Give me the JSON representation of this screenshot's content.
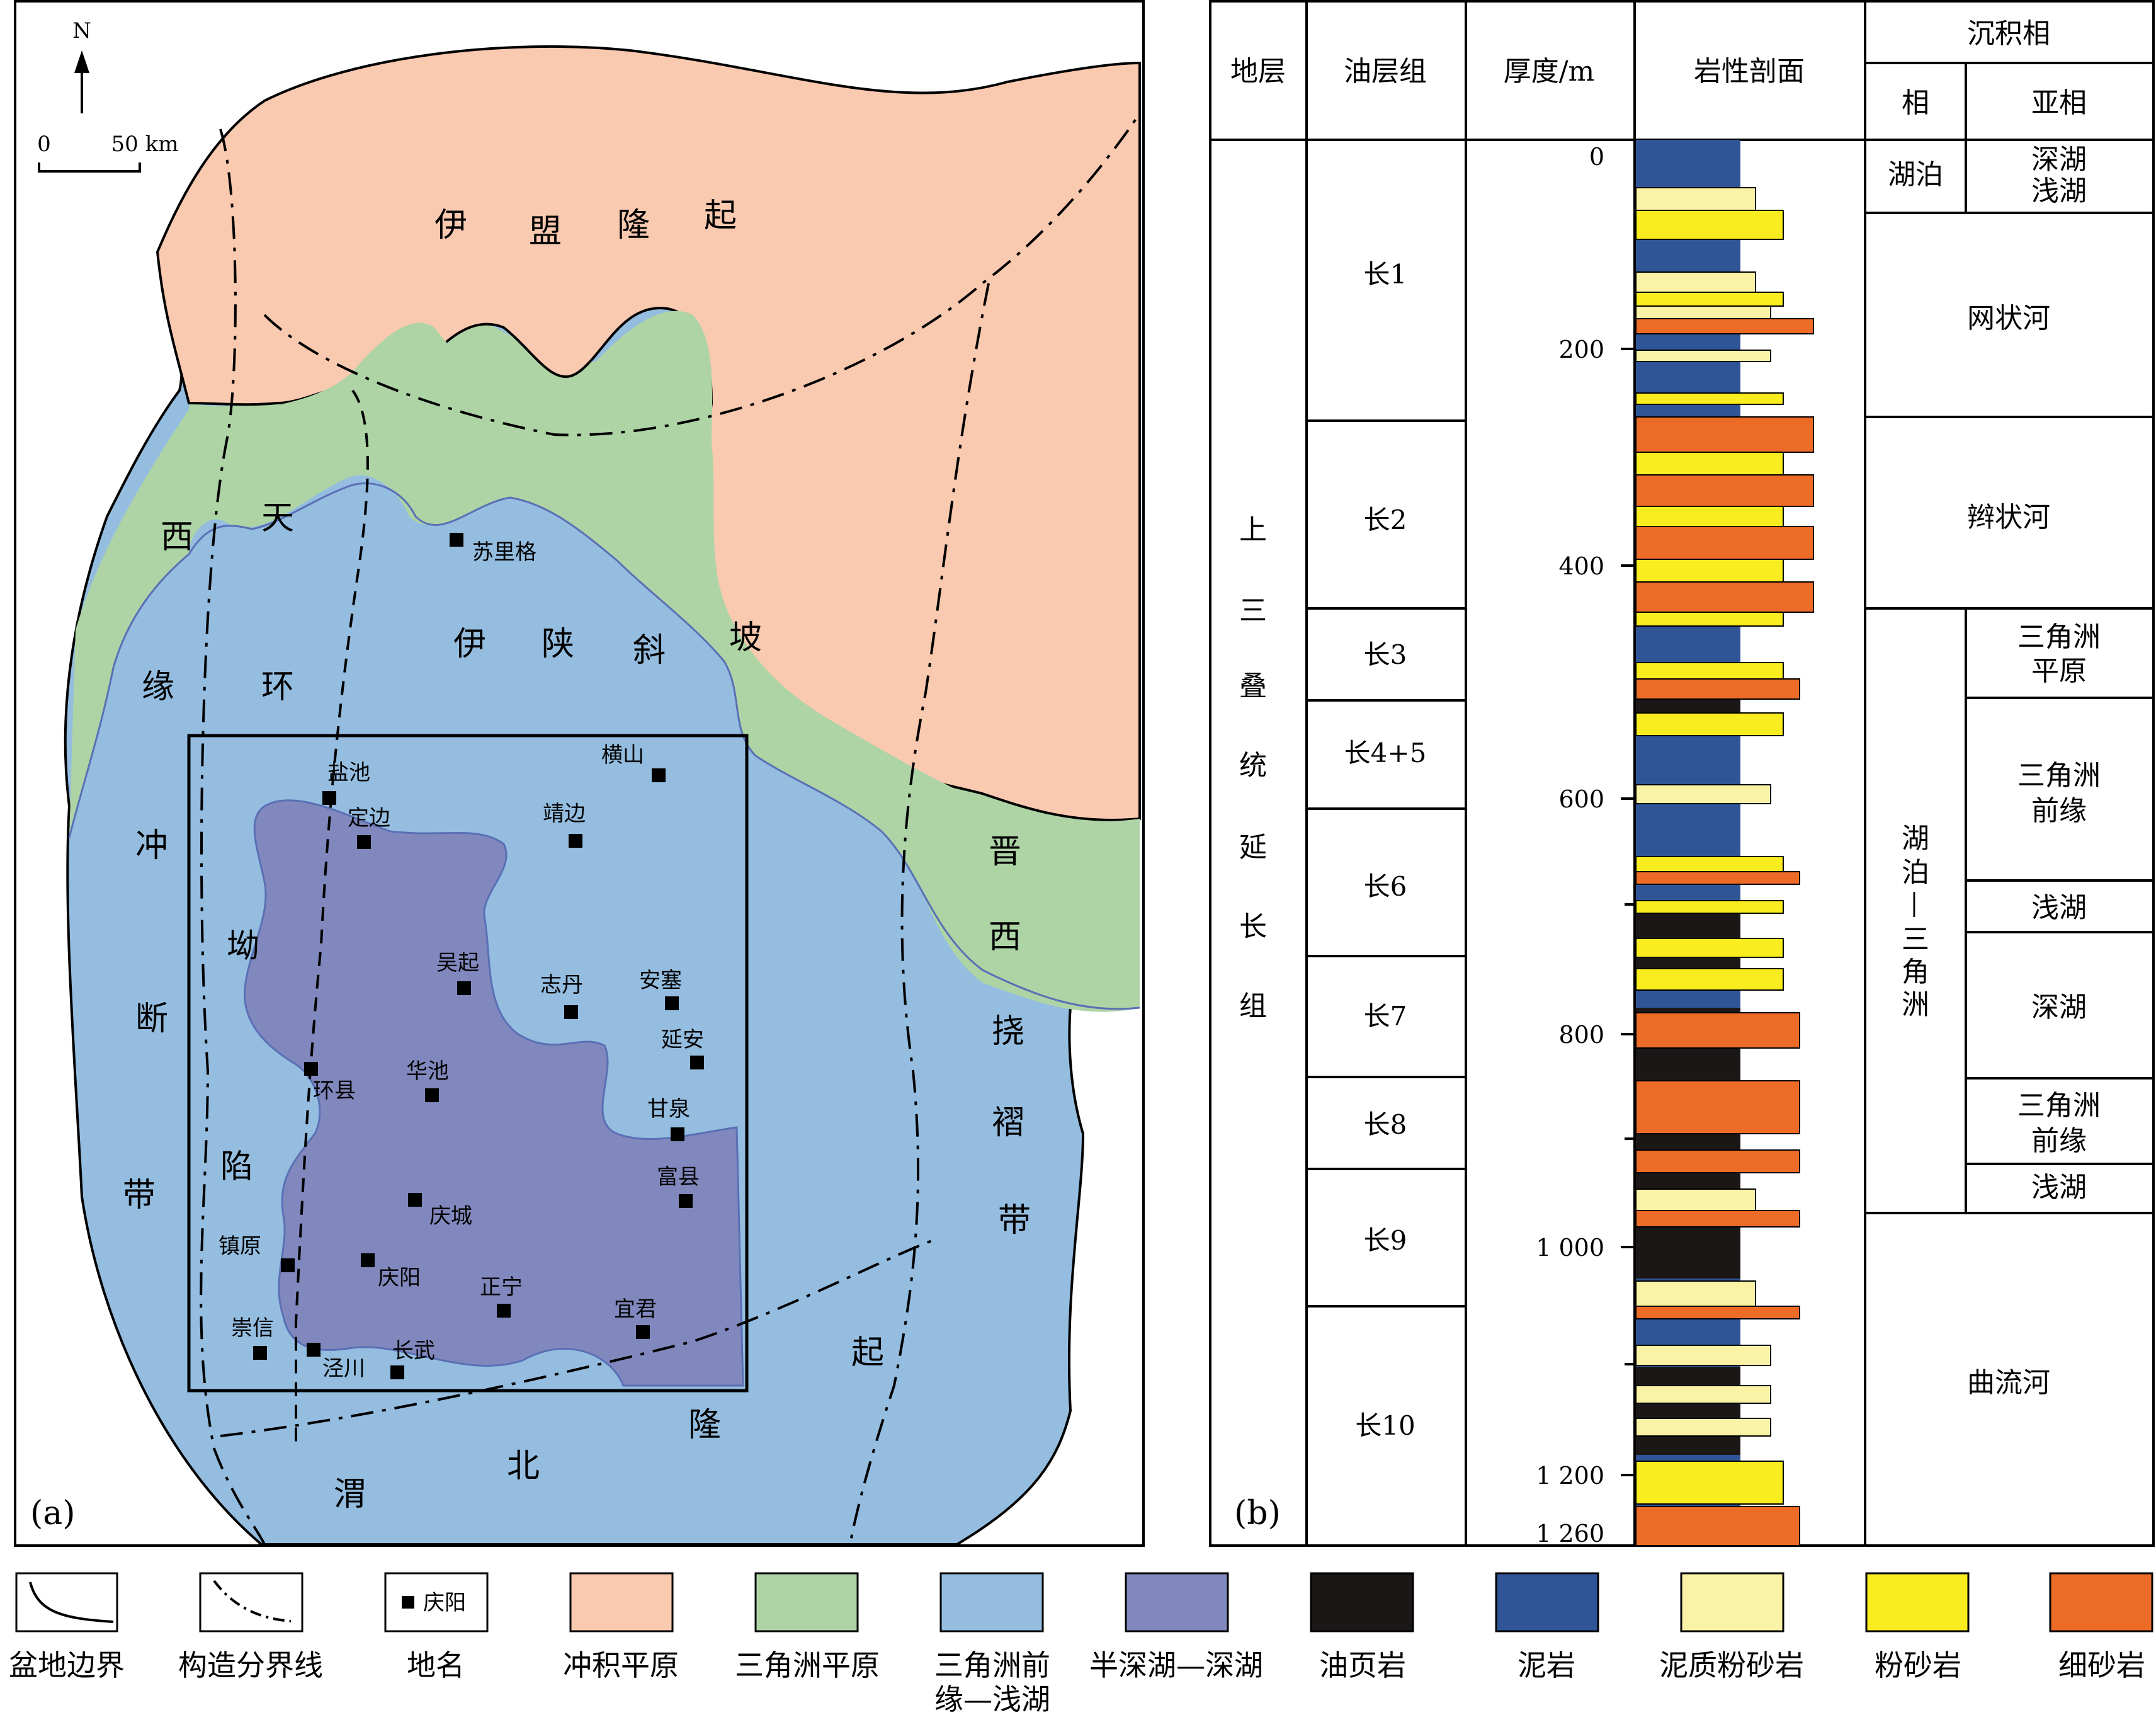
{
  "panel_a": {
    "label": "(a)",
    "north": "N",
    "scale_zero": "0",
    "scale_text": "50 km",
    "regions": {
      "yimeng_uplift": [
        "伊",
        "盟",
        "隆",
        "起"
      ],
      "yishan_slope": [
        "伊",
        "陕",
        "斜",
        "坡"
      ],
      "xitian_fault_zone": [
        "西",
        "天",
        "环",
        "缘",
        "冲",
        "坳",
        "断",
        "陷",
        "带"
      ],
      "jinxi_fold_belt": [
        "晋",
        "西",
        "挠",
        "褶",
        "带"
      ],
      "weibei_uplift": [
        "渭",
        "北",
        "隆",
        "起"
      ]
    },
    "towns": [
      {
        "name": "苏里格"
      },
      {
        "name": "盐池"
      },
      {
        "name": "定边"
      },
      {
        "name": "靖边"
      },
      {
        "name": "横山"
      },
      {
        "name": "吴起"
      },
      {
        "name": "志丹"
      },
      {
        "name": "安塞"
      },
      {
        "name": "延安"
      },
      {
        "name": "华池"
      },
      {
        "name": "环县"
      },
      {
        "name": "甘泉"
      },
      {
        "name": "富县"
      },
      {
        "name": "庆城"
      },
      {
        "name": "镇原"
      },
      {
        "name": "庆阳"
      },
      {
        "name": "正宁"
      },
      {
        "name": "宜君"
      },
      {
        "name": "崇信"
      },
      {
        "name": "泾川"
      },
      {
        "name": "长武"
      }
    ]
  },
  "panel_b": {
    "label": "(b)",
    "headers": {
      "stratum": "地层",
      "oil_group": "油层组",
      "thickness": "厚度/m",
      "lithology": "岩性剖面",
      "facies": "沉积相",
      "facies_phase": "相",
      "facies_subphase": "亚相"
    },
    "stratum_name": [
      "上",
      "三",
      "叠",
      "统",
      "延",
      "长",
      "组"
    ],
    "depth_ticks": [
      "0",
      "200",
      "400",
      "600",
      "800",
      "1 000",
      "1 200",
      "1 260"
    ],
    "members": [
      "长1",
      "长2",
      "长3",
      "长4+5",
      "长6",
      "长7",
      "长8",
      "长9",
      "长10"
    ],
    "facies_rows": [
      {
        "phase": "湖泊",
        "sub": [
          "深湖",
          "浅湖"
        ]
      },
      {
        "phase": "",
        "sub": [
          "网状河"
        ]
      },
      {
        "phase": "",
        "sub": [
          "辫状河"
        ]
      },
      {
        "phase": "湖泊—三角洲",
        "sub": [
          "三角洲",
          "平原"
        ]
      },
      {
        "phase": "",
        "sub": [
          "三角洲",
          "前缘"
        ]
      },
      {
        "phase": "",
        "sub": [
          "浅湖"
        ]
      },
      {
        "phase": "",
        "sub": [
          "深湖"
        ]
      },
      {
        "phase": "",
        "sub": [
          "三角洲",
          "前缘"
        ]
      },
      {
        "phase": "",
        "sub": [
          "浅湖"
        ]
      },
      {
        "phase": "",
        "sub": [
          "曲流河"
        ]
      }
    ],
    "lake_delta_chars": [
      "湖",
      "泊",
      "—",
      "三",
      "角",
      "洲"
    ]
  },
  "legend": [
    {
      "label": "盆地边界",
      "icon": "basin-boundary"
    },
    {
      "label": "构造分界线",
      "icon": "structural-boundary"
    },
    {
      "label": "地名",
      "sample": "庆阳"
    },
    {
      "label": "冲积平原",
      "color": "#F9C9B0"
    },
    {
      "label": "三角洲平原",
      "color": "#AED4A6"
    },
    {
      "label": "三角洲前",
      "label2": "缘—浅湖",
      "color": "#94BDE0"
    },
    {
      "label": "半深湖—深湖",
      "color": "#8188BD"
    },
    {
      "label": "油页岩",
      "color": "#1A1716"
    },
    {
      "label": "泥岩",
      "color": "#2F5597"
    },
    {
      "label": "泥质粉砂岩",
      "color": "#FAF3A6"
    },
    {
      "label": "粉砂岩",
      "color": "#F9EC1F"
    },
    {
      "label": "细砂岩",
      "color": "#EC6B26"
    }
  ],
  "colors": {
    "alluvial": "#F9C9B0",
    "delta_plain": "#AED4A6",
    "delta_front": "#94BDE0",
    "deep_lake": "#8188BD",
    "oil_shale": "#1A1716",
    "mudstone": "#2F5597",
    "muddy_siltstone": "#FAF3A6",
    "siltstone": "#F9EC1F",
    "fine_sandstone": "#EC6B26"
  }
}
